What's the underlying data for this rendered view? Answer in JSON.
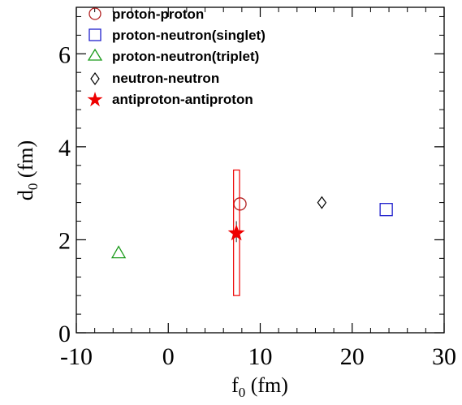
{
  "chart_data": {
    "type": "scatter",
    "title": "",
    "xlabel": {
      "main": "f",
      "sub": "0",
      "unit": " (fm)"
    },
    "ylabel": {
      "main": "d",
      "sub": "0",
      "unit": " (fm)"
    },
    "xlim": [
      -10,
      30
    ],
    "ylim": [
      0,
      7
    ],
    "xticks": [
      -10,
      0,
      10,
      20,
      30
    ],
    "yticks": [
      0,
      2,
      4,
      6
    ],
    "xtick_labels": [
      "-10",
      "0",
      "10",
      "20",
      "30"
    ],
    "ytick_labels": [
      "0",
      "2",
      "4",
      "6"
    ],
    "grid": false,
    "legend_position": "top-left",
    "series": [
      {
        "name": "proton-proton",
        "marker": "circle-open",
        "color": "#b22222",
        "points": [
          [
            7.8,
            2.77
          ]
        ]
      },
      {
        "name": "proton-neutron(singlet)",
        "marker": "square-open",
        "color": "#1f1fcc",
        "points": [
          [
            23.7,
            2.65
          ]
        ]
      },
      {
        "name": "proton-neutron(triplet)",
        "marker": "triangle-open",
        "color": "#1a9a1a",
        "points": [
          [
            -5.4,
            1.7
          ]
        ]
      },
      {
        "name": "neutron-neutron",
        "marker": "diamond-open",
        "color": "#000000",
        "points": [
          [
            16.7,
            2.8
          ]
        ]
      },
      {
        "name": "antiproton-antiproton",
        "marker": "star-filled",
        "color": "#ee0000",
        "points": [
          [
            7.41,
            2.14
          ]
        ],
        "error_box": {
          "x": [
            7.1,
            7.75
          ],
          "y": [
            0.8,
            3.5
          ]
        },
        "error_bar": {
          "y": [
            1.95,
            2.4
          ]
        }
      }
    ]
  }
}
